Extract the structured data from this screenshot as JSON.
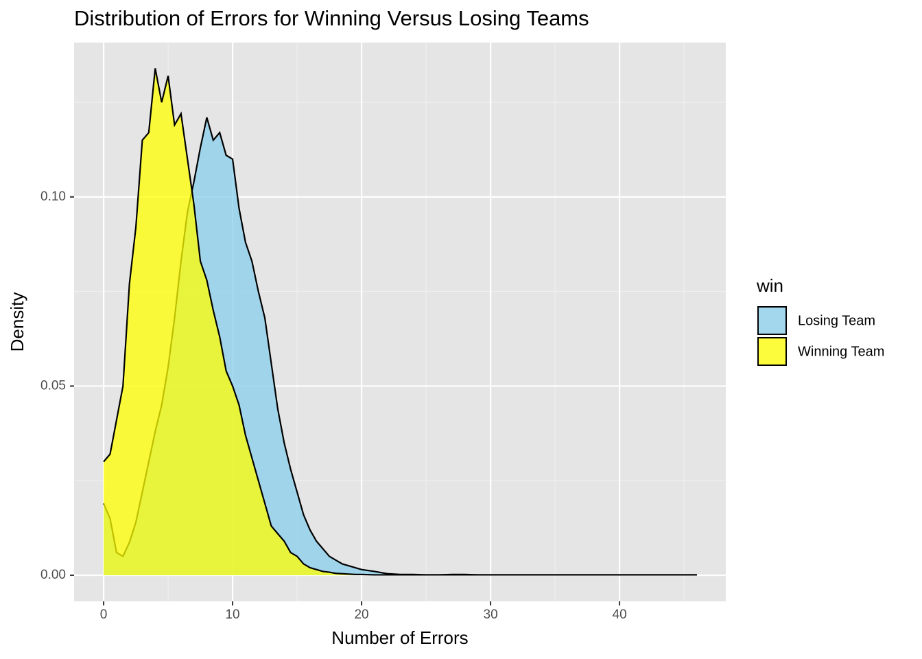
{
  "chart_data": {
    "type": "area",
    "title": "Distribution of Errors for Winning Versus Losing Teams",
    "x_label": "Number of Errors",
    "y_label": "Density",
    "legend_title": "win",
    "legend_position": "right",
    "grid": true,
    "xlim": [
      -2.29,
      48.24
    ],
    "ylim": [
      -0.0069,
      0.1408
    ],
    "xticks": [
      0,
      10,
      20,
      30,
      40
    ],
    "yticks": [
      {
        "value": 0,
        "label": "0.00"
      },
      0.05,
      {
        "value": 0.1,
        "label": "0.10"
      }
    ],
    "xminor": [
      5,
      15,
      25,
      35,
      45
    ],
    "yminor": [
      0.025,
      0.075,
      0.125
    ],
    "fill_opacity": 0.75,
    "x": [
      0,
      0.5,
      1,
      1.5,
      2,
      2.5,
      3,
      3.5,
      4,
      4.5,
      5,
      5.5,
      6,
      6.5,
      7,
      7.5,
      8,
      8.5,
      9,
      9.5,
      10,
      10.5,
      11,
      11.5,
      12,
      12.5,
      13,
      13.5,
      14,
      14.5,
      15,
      15.5,
      16,
      16.5,
      17,
      17.5,
      18,
      18.5,
      19,
      19.5,
      20,
      21,
      22,
      23,
      24,
      25,
      26,
      27,
      28,
      29,
      30,
      31,
      32,
      33,
      34,
      35,
      36,
      37,
      38,
      39,
      40,
      41,
      42,
      43,
      44,
      45,
      46
    ],
    "series": [
      {
        "name": "Losing Team",
        "color": "#87ceeb",
        "values": [
          0.019,
          0.015,
          0.006,
          0.005,
          0.0087,
          0.014,
          0.022,
          0.03,
          0.038,
          0.045,
          0.055,
          0.068,
          0.083,
          0.096,
          0.104,
          0.113,
          0.121,
          0.115,
          0.117,
          0.111,
          0.11,
          0.097,
          0.088,
          0.083,
          0.075,
          0.068,
          0.056,
          0.044,
          0.035,
          0.028,
          0.022,
          0.016,
          0.012,
          0.009,
          0.007,
          0.005,
          0.004,
          0.003,
          0.0025,
          0.002,
          0.0015,
          0.001,
          0.0004,
          0.0002,
          0.0002,
          0.0001,
          0.0001,
          0.0002,
          0.0002,
          0.0001,
          0.0001,
          0.0001,
          0.0001,
          0.0001,
          0.0001,
          0.0001,
          0.0001,
          0.0001,
          0.0001,
          0.0001,
          0.0001,
          0.0001,
          0.0001,
          0.0001,
          0.0001,
          0.0001,
          0.0001
        ]
      },
      {
        "name": "Winning Team",
        "color": "#ffff00",
        "values": [
          0.03,
          0.032,
          0.041,
          0.05,
          0.077,
          0.092,
          0.115,
          0.117,
          0.134,
          0.125,
          0.132,
          0.119,
          0.122,
          0.11,
          0.098,
          0.083,
          0.078,
          0.07,
          0.063,
          0.054,
          0.05,
          0.045,
          0.037,
          0.031,
          0.025,
          0.019,
          0.013,
          0.011,
          0.009,
          0.006,
          0.005,
          0.003,
          0.002,
          0.0015,
          0.001,
          0.0008,
          0.0005,
          0.0004,
          0.0003,
          0.0002,
          0.0002,
          0.0001,
          0.0001,
          0.0001,
          0.0001,
          0.0001,
          0.0001,
          0.0001,
          0.0001,
          0.0001,
          0.0001,
          0.0001,
          0.0001,
          0.0001,
          0.0001,
          0.0001,
          0.0001,
          0.0001,
          0.0001,
          0.0001,
          0.0001,
          0.0001,
          0.0001,
          0.0001,
          0.0001,
          0.0001,
          0.0001
        ]
      }
    ]
  }
}
